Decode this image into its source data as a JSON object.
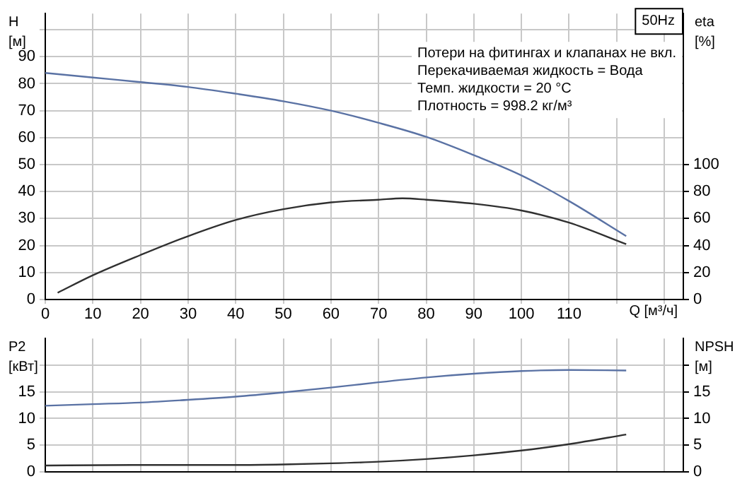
{
  "chart_data": [
    {
      "type": "line",
      "title": "50Hz",
      "annotations": [
        "Потери на фитингах и клапанах не вкл.",
        "Перекачиваемая жидкость = Вода",
        "Темп. жидкости = 20 °C",
        "Плотность = 998.2 кг/м³"
      ],
      "xlabel": "Q [м³/ч]",
      "ylabel": "H [м]",
      "y2label": "eta [%]",
      "grid": true,
      "legend": false,
      "marker": "none",
      "line_style": "solid",
      "xlim": [
        0,
        134
      ],
      "xticks": [
        0,
        10,
        20,
        30,
        40,
        50,
        60,
        70,
        80,
        90,
        100,
        110,
        {
          "value": 120,
          "label": null
        },
        {
          "value": 130,
          "label": null
        }
      ],
      "ylim": [
        0,
        106
      ],
      "yticks": [
        0,
        10,
        20,
        30,
        40,
        50,
        60,
        70,
        80,
        90,
        {
          "value": 100,
          "label": null
        }
      ],
      "y2lim": [
        0,
        212
      ],
      "y2ticks": [
        0,
        20,
        40,
        60,
        80,
        100
      ],
      "series": [
        {
          "color": "#5a72a4",
          "x": [
            0,
            10,
            20,
            30,
            40,
            50,
            60,
            70,
            80,
            90,
            100,
            110,
            122
          ],
          "values": [
            84,
            82.3,
            80.6,
            78.8,
            76.3,
            73.5,
            70,
            65.5,
            60.3,
            53.5,
            46,
            36.5,
            23.5
          ]
        },
        {
          "color": "#303030",
          "axis": "y2",
          "x": [
            2.6,
            10,
            20,
            30,
            40,
            50,
            60,
            70,
            75,
            80,
            90,
            100,
            110,
            122
          ],
          "values": [
            5,
            18,
            33,
            47,
            59,
            67,
            72,
            74,
            75,
            74,
            71,
            66,
            57,
            41
          ]
        }
      ]
    },
    {
      "type": "line",
      "ylabel": "P2 [кВт]",
      "y2label": "NPSH [м]",
      "grid": true,
      "legend": false,
      "marker": "none",
      "line_style": "solid",
      "tick_labels": "y",
      "xlim": [
        0,
        134
      ],
      "xticks": [
        0,
        10,
        20,
        30,
        40,
        50,
        60,
        70,
        80,
        90,
        100,
        110,
        120,
        130
      ],
      "ylim": [
        0,
        25
      ],
      "yticks": [
        0,
        5,
        10,
        15,
        {
          "value": 20,
          "label": null
        }
      ],
      "y2lim": [
        0,
        25
      ],
      "y2ticks": [
        0,
        5,
        10,
        15,
        {
          "value": 20,
          "label": null
        }
      ],
      "series": [
        {
          "color": "#5a72a4",
          "x": [
            0,
            10,
            20,
            30,
            40,
            50,
            60,
            70,
            80,
            90,
            100,
            110,
            122
          ],
          "values": [
            12.4,
            12.7,
            13,
            13.5,
            14.1,
            14.9,
            15.8,
            16.8,
            17.7,
            18.4,
            18.9,
            19.1,
            19
          ]
        },
        {
          "color": "#303030",
          "axis": "y2",
          "x": [
            0,
            20,
            40,
            50,
            60,
            70,
            80,
            90,
            100,
            110,
            122
          ],
          "values": [
            1.2,
            1.3,
            1.3,
            1.4,
            1.6,
            1.9,
            2.4,
            3.1,
            4,
            5.2,
            7
          ]
        }
      ]
    }
  ]
}
